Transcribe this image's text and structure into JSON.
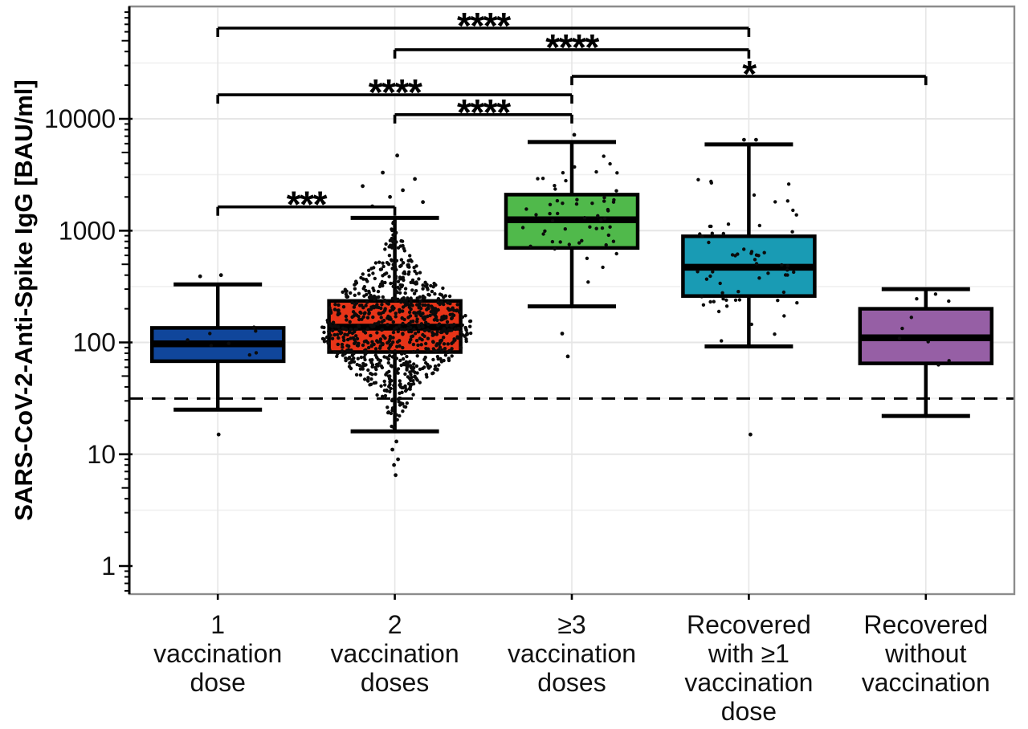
{
  "chart_data": {
    "type": "boxplot",
    "title": "",
    "ylabel": "SARS-CoV-2-Anti-Spike IgG [BAU/ml]",
    "yscale": "log10",
    "ylim": [
      0.56,
      100000
    ],
    "grid": "major-and-minor",
    "yticks": [
      {
        "v": 10000,
        "label": "10000"
      },
      {
        "v": 1000,
        "label": "1000"
      },
      {
        "v": 100,
        "label": "100"
      },
      {
        "v": 10,
        "label": "10"
      },
      {
        "v": 1,
        "label": "1"
      }
    ],
    "cutoff_line": {
      "value": 31.5,
      "style": "dashed",
      "color": "#000000"
    },
    "point_color": "#0b0b0b",
    "groups": [
      {
        "label_lines": [
          "1",
          "vaccination",
          "dose"
        ],
        "color": "#10469B",
        "whisker_low": 25,
        "q1": 68,
        "median": 97,
        "q3": 135,
        "whisker_high": 330,
        "points": {
          "n": 8,
          "center": 97,
          "sigma": 0.15,
          "clip": [
            65,
            140
          ],
          "jitter": 0.6,
          "swarm": false
        },
        "outliers": [
          {
            "v": 390,
            "dx": -22
          },
          {
            "v": 400,
            "dx": 4
          },
          {
            "v": 15,
            "dx": 1
          }
        ]
      },
      {
        "label_lines": [
          "2",
          "vaccination",
          "doses"
        ],
        "color": "#E73418",
        "whisker_low": 16,
        "q1": 82,
        "median": 137,
        "q3": 235,
        "whisker_high": 1300,
        "points": {
          "n": 850,
          "center": 137,
          "sigma": 0.34,
          "clip": [
            15,
            1450
          ],
          "jitter": 1.0,
          "swarm": true
        },
        "outliers": [
          {
            "v": 4700,
            "dx": 3
          },
          {
            "v": 3300,
            "dx": -15
          },
          {
            "v": 2900,
            "dx": 25
          },
          {
            "v": 2500,
            "dx": -40
          },
          {
            "v": 2300,
            "dx": 10
          },
          {
            "v": 2000,
            "dx": -6
          },
          {
            "v": 1800,
            "dx": 35
          },
          {
            "v": 1650,
            "dx": -28
          },
          {
            "v": 13,
            "dx": 2
          },
          {
            "v": 11,
            "dx": -3
          },
          {
            "v": 9,
            "dx": 4
          },
          {
            "v": 8,
            "dx": -1
          },
          {
            "v": 6.5,
            "dx": 1
          }
        ]
      },
      {
        "label_lines": [
          "≥3",
          "vaccination",
          "doses"
        ],
        "color": "#50B94B",
        "whisker_low": 210,
        "q1": 700,
        "median": 1250,
        "q3": 2100,
        "whisker_high": 6200,
        "points": {
          "n": 55,
          "center": 1250,
          "sigma": 0.3,
          "clip": [
            230,
            5200
          ],
          "jitter": 0.75,
          "swarm": false
        },
        "outliers": [
          {
            "v": 7200,
            "dx": 3
          },
          {
            "v": 120,
            "dx": -12
          },
          {
            "v": 75,
            "dx": -5
          }
        ]
      },
      {
        "label_lines": [
          "Recovered",
          "with ≥1",
          "vaccination",
          "dose"
        ],
        "color": "#199BB4",
        "whisker_low": 92,
        "q1": 260,
        "median": 470,
        "q3": 890,
        "whisker_high": 5900,
        "points": {
          "n": 62,
          "center": 470,
          "sigma": 0.38,
          "clip": [
            100,
            5000
          ],
          "jitter": 0.78,
          "swarm": false
        },
        "outliers": [
          {
            "v": 6500,
            "dx": -6
          },
          {
            "v": 6500,
            "dx": 9
          },
          {
            "v": 15,
            "dx": 2
          }
        ]
      },
      {
        "label_lines": [
          "Recovered",
          "without",
          "vaccination"
        ],
        "color": "#965FA5",
        "whisker_low": 22,
        "q1": 65,
        "median": 110,
        "q3": 200,
        "whisker_high": 300,
        "points": {
          "n": 9,
          "center": 110,
          "sigma": 0.22,
          "clip": [
            26,
            285
          ],
          "jitter": 0.6,
          "swarm": false
        },
        "outliers": []
      }
    ],
    "significance_bars": [
      {
        "a": 0,
        "b": 3,
        "label": "****",
        "y_value": 64800
      },
      {
        "a": 1,
        "b": 3,
        "label": "****",
        "y_value": 41500
      },
      {
        "a": 2,
        "b": 4,
        "label": "*",
        "y_value": 24000
      },
      {
        "a": 0,
        "b": 2,
        "label": "****",
        "y_value": 16400
      },
      {
        "a": 1,
        "b": 2,
        "label": "****",
        "y_value": 10900
      },
      {
        "a": 0,
        "b": 1,
        "label": "***",
        "y_value": 1630
      }
    ]
  }
}
